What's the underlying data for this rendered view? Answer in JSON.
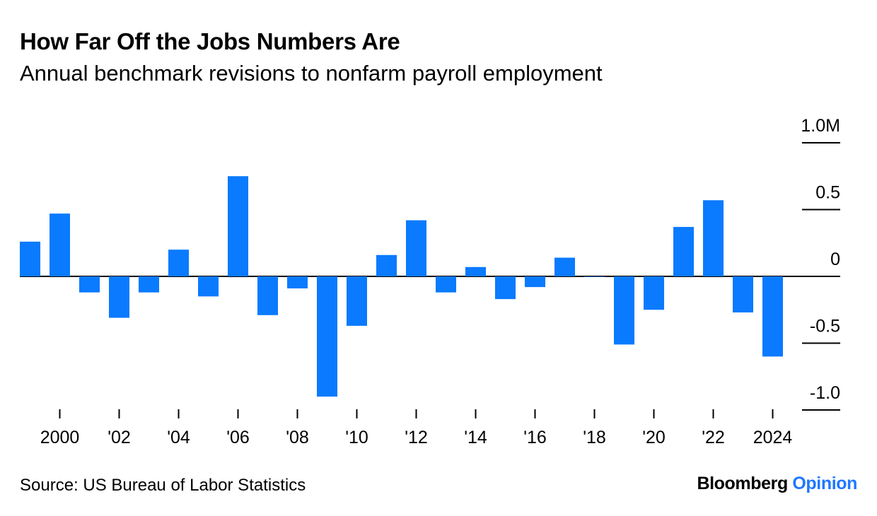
{
  "title": "How Far Off the Jobs Numbers Are",
  "subtitle": "Annual benchmark revisions to nonfarm payroll employment",
  "source": "Source: US Bureau of Labor Statistics",
  "brand": {
    "name": "Bloomberg",
    "accent": "Opinion"
  },
  "colors": {
    "bar": "#0a7aff",
    "accent": "#1f78ff",
    "axis": "#000000"
  },
  "chart_data": {
    "type": "bar",
    "x": [
      1999,
      2000,
      2001,
      2002,
      2003,
      2004,
      2005,
      2006,
      2007,
      2008,
      2009,
      2010,
      2011,
      2012,
      2013,
      2014,
      2015,
      2016,
      2017,
      2018,
      2019,
      2020,
      2021,
      2022,
      2023,
      2024
    ],
    "values": [
      0.26,
      0.47,
      -0.12,
      -0.31,
      -0.12,
      0.2,
      -0.15,
      0.75,
      -0.29,
      -0.09,
      -0.9,
      -0.37,
      0.16,
      0.42,
      -0.12,
      0.07,
      -0.17,
      -0.08,
      0.14,
      0.0,
      -0.51,
      -0.25,
      0.37,
      0.57,
      -0.27,
      -0.6
    ],
    "unit": "M",
    "ylim": [
      -1.0,
      1.0
    ],
    "y_ticks": [
      1.0,
      0.5,
      0,
      -0.5,
      -1.0
    ],
    "y_tick_labels": [
      "1.0M",
      "0.5",
      "0",
      "-0.5",
      "-1.0"
    ],
    "x_ticks": [
      2000,
      2002,
      2004,
      2006,
      2008,
      2010,
      2012,
      2014,
      2016,
      2018,
      2020,
      2022,
      2024
    ],
    "x_tick_labels": [
      "2000",
      "'02",
      "'04",
      "'06",
      "'08",
      "'10",
      "'12",
      "'14",
      "'16",
      "'18",
      "'20",
      "'22",
      "2024"
    ],
    "y_axis_side": "right",
    "grid": false,
    "legend": "none"
  }
}
